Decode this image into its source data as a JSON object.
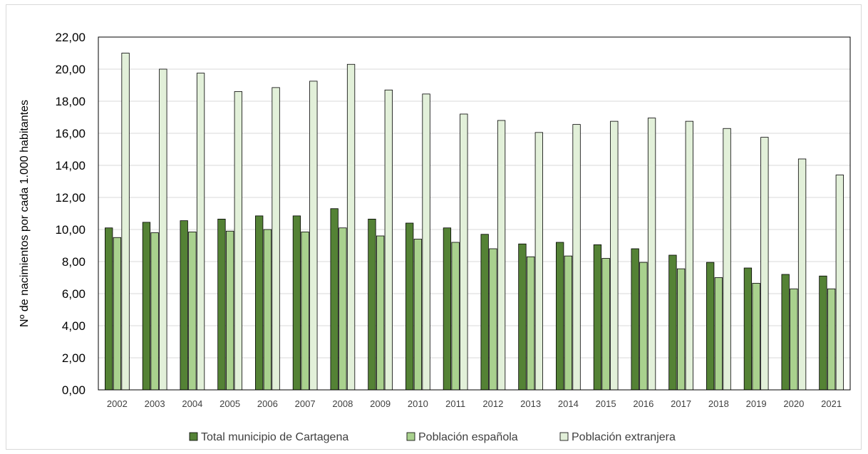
{
  "chart_data": {
    "type": "bar",
    "title": "",
    "xlabel": "",
    "ylabel": "Nº de nacimientos por cada 1.000 habitantes",
    "ylim": [
      0,
      22
    ],
    "ytick_step": 2,
    "ytick_labels": [
      "0,00",
      "2,00",
      "4,00",
      "6,00",
      "8,00",
      "10,00",
      "12,00",
      "14,00",
      "16,00",
      "18,00",
      "20,00",
      "22,00"
    ],
    "grid": true,
    "legend_position": "bottom",
    "categories": [
      "2002",
      "2003",
      "2004",
      "2005",
      "2006",
      "2007",
      "2008",
      "2009",
      "2010",
      "2011",
      "2012",
      "2013",
      "2014",
      "2015",
      "2016",
      "2017",
      "2018",
      "2019",
      "2020",
      "2021"
    ],
    "series": [
      {
        "name": "Total municipio de Cartagena",
        "color": "#548235",
        "values": [
          10.1,
          10.45,
          10.55,
          10.65,
          10.85,
          10.85,
          11.3,
          10.65,
          10.4,
          10.1,
          9.7,
          9.1,
          9.2,
          9.05,
          8.8,
          8.4,
          7.95,
          7.6,
          7.2,
          7.1
        ]
      },
      {
        "name": "Población española",
        "color": "#a9d18e",
        "values": [
          9.5,
          9.8,
          9.85,
          9.9,
          10.0,
          9.85,
          10.1,
          9.6,
          9.4,
          9.2,
          8.8,
          8.3,
          8.35,
          8.2,
          7.95,
          7.55,
          7.0,
          6.65,
          6.3,
          6.3
        ]
      },
      {
        "name": "Población extranjera",
        "color": "#e2f0d9",
        "values": [
          21.0,
          20.0,
          19.75,
          18.6,
          18.85,
          19.25,
          20.3,
          18.7,
          18.45,
          17.2,
          16.8,
          16.05,
          16.55,
          16.75,
          16.95,
          16.75,
          16.3,
          15.75,
          14.4,
          13.4
        ]
      }
    ]
  }
}
